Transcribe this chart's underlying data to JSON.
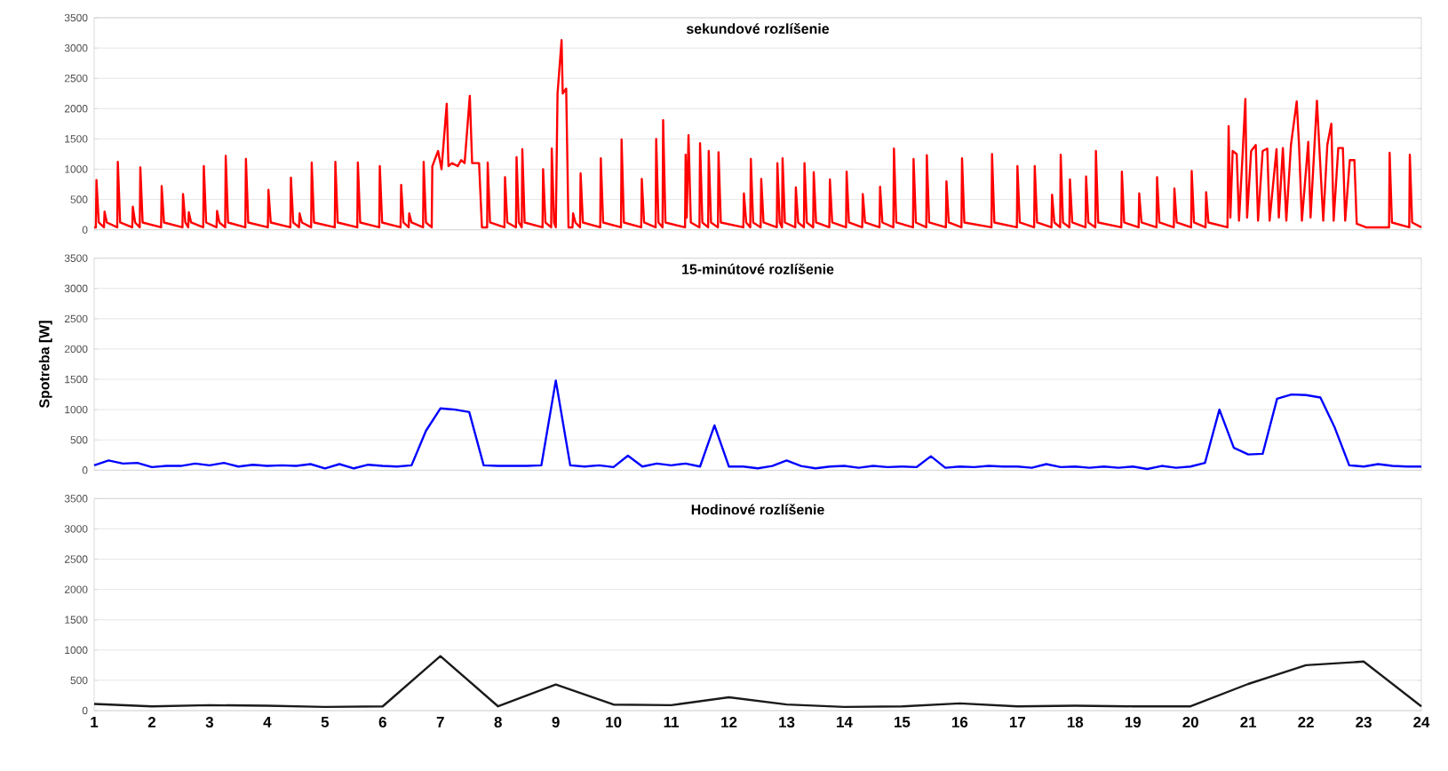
{
  "chart_data": [
    {
      "type": "line",
      "title": "sekundové rozlíšenie",
      "color": "#ff0000",
      "xlim": [
        1,
        24
      ],
      "xticks": [
        1,
        2,
        3,
        4,
        5,
        6,
        7,
        8,
        9,
        10,
        11,
        12,
        13,
        14,
        15,
        16,
        17,
        18,
        19,
        20,
        21,
        22,
        23,
        24
      ],
      "ylim": [
        0,
        3500
      ],
      "yticks": [
        0,
        500,
        1000,
        1500,
        2000,
        2500,
        3000,
        3500
      ],
      "grid": "y",
      "tick_labels": "y",
      "x": [
        1.0,
        1.03,
        1.04,
        1.08,
        1.17,
        1.18,
        1.22,
        1.4,
        1.41,
        1.45,
        1.66,
        1.67,
        1.71,
        1.79,
        1.8,
        1.84,
        2.16,
        2.17,
        2.21,
        2.53,
        2.54,
        2.58,
        2.63,
        2.64,
        2.68,
        2.89,
        2.9,
        2.94,
        3.12,
        3.13,
        3.17,
        3.27,
        3.28,
        3.32,
        3.62,
        3.63,
        3.67,
        4.01,
        4.02,
        4.06,
        4.4,
        4.41,
        4.45,
        4.55,
        4.56,
        4.6,
        4.76,
        4.77,
        4.81,
        5.17,
        5.18,
        5.22,
        5.56,
        5.57,
        5.61,
        5.94,
        5.95,
        5.99,
        6.31,
        6.32,
        6.36,
        6.45,
        6.46,
        6.5,
        6.7,
        6.71,
        6.75,
        6.85,
        6.86,
        6.96,
        7.02,
        7.11,
        7.14,
        7.2,
        7.3,
        7.36,
        7.42,
        7.51,
        7.55,
        7.67,
        7.72,
        7.81,
        7.82,
        7.86,
        8.11,
        8.12,
        8.16,
        8.31,
        8.32,
        8.36,
        8.41,
        8.42,
        8.46,
        8.77,
        8.78,
        8.82,
        8.92,
        8.93,
        8.97,
        9.0,
        9.03,
        9.1,
        9.12,
        9.18,
        9.22,
        9.29,
        9.3,
        9.34,
        9.42,
        9.43,
        9.47,
        9.77,
        9.78,
        9.82,
        10.13,
        10.14,
        10.18,
        10.48,
        10.49,
        10.53,
        10.73,
        10.74,
        10.78,
        10.85,
        10.86,
        10.9,
        11.24,
        11.25,
        11.27,
        11.3,
        11.34,
        11.49,
        11.5,
        11.54,
        11.64,
        11.65,
        11.69,
        11.81,
        11.82,
        11.86,
        12.25,
        12.26,
        12.3,
        12.37,
        12.38,
        12.42,
        12.55,
        12.56,
        12.6,
        12.83,
        12.84,
        12.88,
        12.92,
        12.93,
        12.97,
        13.15,
        13.16,
        13.2,
        13.3,
        13.31,
        13.35,
        13.46,
        13.47,
        13.51,
        13.74,
        13.75,
        13.79,
        14.03,
        14.04,
        14.08,
        14.31,
        14.32,
        14.36,
        14.61,
        14.62,
        14.66,
        14.85,
        14.86,
        14.9,
        15.19,
        15.2,
        15.24,
        15.42,
        15.43,
        15.47,
        15.76,
        15.77,
        15.81,
        16.03,
        16.04,
        16.08,
        16.55,
        16.56,
        16.6,
        16.99,
        17.0,
        17.04,
        17.29,
        17.3,
        17.34,
        17.59,
        17.6,
        17.64,
        17.74,
        17.75,
        17.79,
        17.9,
        17.91,
        17.95,
        18.18,
        18.19,
        18.23,
        18.35,
        18.36,
        18.4,
        18.8,
        18.81,
        18.85,
        19.1,
        19.11,
        19.15,
        19.41,
        19.42,
        19.46,
        19.71,
        19.72,
        19.76,
        20.01,
        20.02,
        20.06,
        20.26,
        20.27,
        20.31,
        20.64,
        20.66,
        20.69,
        20.73,
        20.8,
        20.84,
        20.9,
        20.95,
        20.98,
        21.05,
        21.13,
        21.17,
        21.25,
        21.33,
        21.37,
        21.49,
        21.53,
        21.6,
        21.66,
        21.74,
        21.84,
        21.88,
        21.93,
        22.04,
        22.08,
        22.19,
        22.23,
        22.3,
        22.37,
        22.44,
        22.48,
        22.56,
        22.64,
        22.68,
        22.76,
        22.84,
        22.88,
        23.04,
        23.44,
        23.45,
        23.49,
        23.79,
        23.8,
        23.84,
        24.0
      ],
      "values": [
        40,
        40,
        820,
        120,
        40,
        300,
        120,
        40,
        1120,
        120,
        40,
        380,
        120,
        40,
        1030,
        120,
        40,
        720,
        120,
        40,
        590,
        120,
        40,
        290,
        120,
        40,
        1050,
        120,
        40,
        310,
        120,
        40,
        1220,
        120,
        40,
        1170,
        120,
        40,
        660,
        120,
        40,
        860,
        120,
        40,
        270,
        120,
        40,
        1110,
        120,
        40,
        1120,
        120,
        40,
        1110,
        120,
        40,
        1050,
        120,
        40,
        740,
        120,
        40,
        270,
        120,
        40,
        1120,
        120,
        40,
        1050,
        1300,
        1000,
        2080,
        1050,
        1100,
        1050,
        1150,
        1100,
        2210,
        1100,
        1100,
        40,
        40,
        1110,
        120,
        40,
        870,
        120,
        40,
        1200,
        120,
        40,
        1330,
        120,
        40,
        1000,
        120,
        40,
        1340,
        120,
        40,
        2250,
        3130,
        2250,
        2330,
        40,
        40,
        270,
        120,
        40,
        930,
        120,
        40,
        1180,
        120,
        40,
        1490,
        120,
        40,
        840,
        120,
        40,
        1500,
        120,
        40,
        1810,
        120,
        40,
        1240,
        200,
        1560,
        120,
        40,
        1430,
        120,
        40,
        1300,
        120,
        40,
        1280,
        120,
        40,
        600,
        120,
        40,
        1170,
        120,
        40,
        840,
        120,
        40,
        1100,
        120,
        40,
        1180,
        120,
        40,
        700,
        120,
        40,
        1100,
        120,
        40,
        950,
        120,
        40,
        830,
        120,
        40,
        960,
        120,
        40,
        590,
        120,
        40,
        710,
        120,
        40,
        1340,
        120,
        40,
        1170,
        120,
        40,
        1230,
        120,
        40,
        800,
        120,
        40,
        1180,
        120,
        40,
        1250,
        120,
        40,
        1050,
        120,
        40,
        1050,
        120,
        40,
        580,
        120,
        40,
        1240,
        120,
        40,
        830,
        120,
        40,
        880,
        120,
        40,
        1300,
        120,
        40,
        960,
        120,
        40,
        600,
        120,
        40,
        870,
        120,
        40,
        680,
        120,
        40,
        970,
        120,
        40,
        620,
        120,
        40,
        1710,
        200,
        1300,
        1250,
        150,
        1200,
        2160,
        200,
        1300,
        1400,
        150,
        1300,
        1340,
        150,
        1330,
        200,
        1350,
        150,
        1400,
        2120,
        1400,
        150,
        1450,
        200,
        2130,
        1400,
        150,
        1400,
        1750,
        150,
        1350,
        1350,
        150,
        1150,
        1150,
        100,
        40,
        40,
        1270,
        120,
        40,
        1240,
        120,
        40
      ]
    },
    {
      "type": "line",
      "title": "15-minútové rozlíšenie",
      "ylabel": "Spotreba [W]",
      "color": "#0000ff",
      "xlim": [
        1,
        24
      ],
      "xticks": [
        1,
        2,
        3,
        4,
        5,
        6,
        7,
        8,
        9,
        10,
        11,
        12,
        13,
        14,
        15,
        16,
        17,
        18,
        19,
        20,
        21,
        22,
        23,
        24
      ],
      "ylim": [
        0,
        3500
      ],
      "yticks": [
        0,
        500,
        1000,
        1500,
        2000,
        2500,
        3000,
        3500
      ],
      "grid": "y",
      "tick_labels": "y",
      "x": [
        1,
        1.25,
        1.5,
        1.75,
        2,
        2.25,
        2.5,
        2.75,
        3,
        3.25,
        3.5,
        3.75,
        4,
        4.25,
        4.5,
        4.75,
        5,
        5.25,
        5.5,
        5.75,
        6,
        6.25,
        6.5,
        6.75,
        7,
        7.25,
        7.5,
        7.75,
        8,
        8.25,
        8.5,
        8.75,
        9,
        9.25,
        9.5,
        9.75,
        10,
        10.25,
        10.5,
        10.75,
        11,
        11.25,
        11.5,
        11.75,
        12,
        12.25,
        12.5,
        12.75,
        13,
        13.25,
        13.5,
        13.75,
        14,
        14.25,
        14.5,
        14.75,
        15,
        15.25,
        15.5,
        15.75,
        16,
        16.25,
        16.5,
        16.75,
        17,
        17.25,
        17.5,
        17.75,
        18,
        18.25,
        18.5,
        18.75,
        19,
        19.25,
        19.5,
        19.75,
        20,
        20.25,
        20.5,
        20.75,
        21,
        21.25,
        21.5,
        21.75,
        22,
        22.25,
        22.5,
        22.75,
        23,
        23.25,
        23.5,
        23.75,
        24
      ],
      "values": [
        80,
        160,
        110,
        120,
        50,
        70,
        70,
        110,
        80,
        120,
        60,
        90,
        70,
        80,
        70,
        100,
        30,
        100,
        30,
        90,
        70,
        60,
        80,
        650,
        1020,
        1000,
        960,
        80,
        70,
        70,
        70,
        80,
        1480,
        80,
        60,
        80,
        50,
        240,
        60,
        110,
        80,
        110,
        60,
        740,
        60,
        60,
        30,
        70,
        160,
        70,
        30,
        60,
        70,
        40,
        70,
        50,
        60,
        50,
        230,
        40,
        60,
        50,
        70,
        60,
        60,
        40,
        100,
        50,
        60,
        40,
        60,
        40,
        60,
        20,
        70,
        40,
        60,
        120,
        1000,
        370,
        260,
        270,
        1180,
        1250,
        1240,
        1200,
        700,
        80,
        60,
        100,
        70,
        60,
        60
      ]
    },
    {
      "type": "line",
      "title": "Hodinové rozlíšenie",
      "color": "#1a1a1a",
      "xlim": [
        1,
        24
      ],
      "xticks": [
        1,
        2,
        3,
        4,
        5,
        6,
        7,
        8,
        9,
        10,
        11,
        12,
        13,
        14,
        15,
        16,
        17,
        18,
        19,
        20,
        21,
        22,
        23,
        24
      ],
      "ylim": [
        0,
        3500
      ],
      "yticks": [
        0,
        500,
        1000,
        1500,
        2000,
        2500,
        3000,
        3500
      ],
      "grid": "y",
      "x": [
        1,
        2,
        3,
        4,
        5,
        6,
        7,
        8,
        9,
        10,
        11,
        12,
        13,
        14,
        15,
        16,
        17,
        18,
        19,
        20,
        21,
        22,
        23,
        24
      ],
      "values": [
        110,
        70,
        90,
        80,
        60,
        70,
        900,
        70,
        430,
        100,
        90,
        220,
        100,
        60,
        70,
        120,
        70,
        80,
        70,
        70,
        440,
        750,
        810,
        70
      ]
    }
  ]
}
